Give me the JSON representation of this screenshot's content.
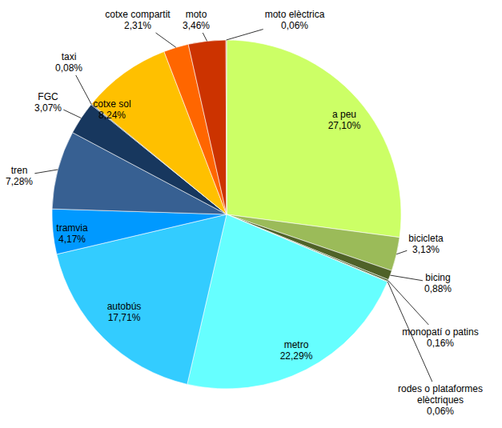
{
  "chart_data": {
    "type": "pie",
    "categories": [
      "a peu",
      "bicicleta",
      "bicing",
      "monopatí o patins",
      "rodes o plataformes elèctriques",
      "metro",
      "autobús",
      "tramvia",
      "tren",
      "FGC",
      "taxi",
      "cotxe sol",
      "cotxe compartit",
      "moto",
      "moto elèctrica"
    ],
    "values": [
      27.1,
      3.13,
      0.88,
      0.16,
      0.06,
      22.29,
      17.71,
      4.17,
      7.28,
      3.07,
      0.08,
      8.24,
      2.31,
      3.46,
      0.06
    ],
    "value_labels": [
      "27,10%",
      "3,13%",
      "0,88%",
      "0,16%",
      "0,06%",
      "22,29%",
      "17,71%",
      "4,17%",
      "7,28%",
      "3,07%",
      "0,08%",
      "8,24%",
      "2,31%",
      "3,46%",
      "0,06%"
    ],
    "colors": [
      "#ccff66",
      "#9bbb59",
      "#4f6228",
      "#3f5a1f",
      "#2b3a10",
      "#66ffff",
      "#33ccff",
      "#0099ff",
      "#376092",
      "#17375e",
      "#0f243e",
      "#ffc000",
      "#ff6600",
      "#cc3300",
      "#c0504d"
    ],
    "data_labels": true
  }
}
